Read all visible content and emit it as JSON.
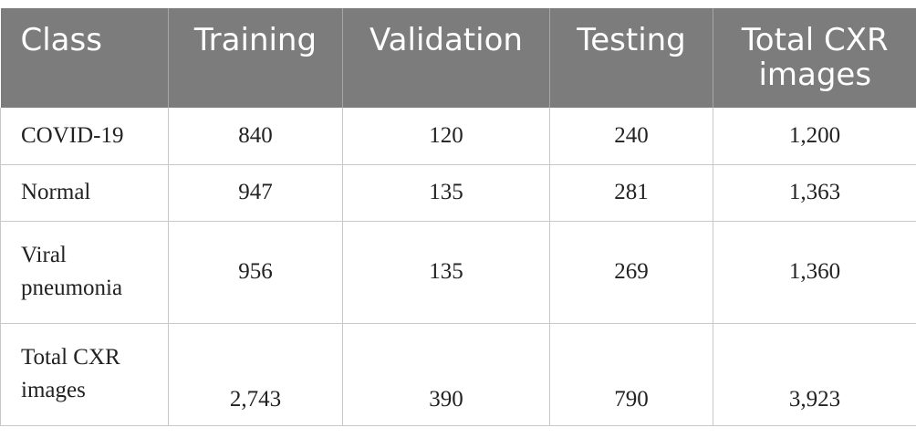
{
  "table": {
    "headers": [
      "Class",
      "Training",
      "Validation",
      "Testing",
      "Total CXR images"
    ],
    "rows": [
      {
        "class": "COVID-19",
        "training": "840",
        "validation": "120",
        "testing": "240",
        "total": "1,200"
      },
      {
        "class": "Normal",
        "training": "947",
        "validation": "135",
        "testing": "281",
        "total": "1,363"
      },
      {
        "class": "Viral pneumonia",
        "training": "956",
        "validation": "135",
        "testing": "269",
        "total": "1,360"
      },
      {
        "class": "Total CXR images",
        "training": "2,743",
        "validation": "390",
        "testing": "790",
        "total": "3,923"
      }
    ]
  },
  "colors": {
    "header_bg": "#7c7c7c",
    "header_text": "#ffffff",
    "border": "#c8c8c8"
  }
}
